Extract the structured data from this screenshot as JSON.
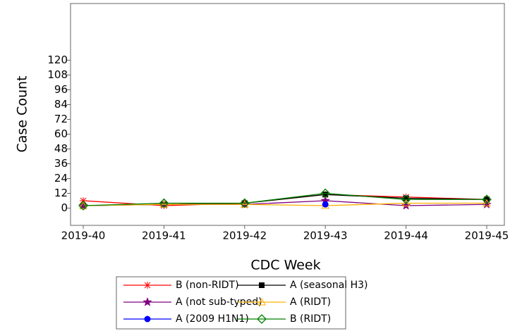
{
  "chart_data": {
    "type": "line",
    "x_label": "CDC Week",
    "y_label": "Case Count",
    "categories": [
      "2019-40",
      "2019-41",
      "2019-42",
      "2019-43",
      "2019-44",
      "2019-45"
    ],
    "ylim": [
      -14,
      166
    ],
    "yticks": [
      0,
      12,
      24,
      36,
      48,
      60,
      72,
      84,
      96,
      108,
      120
    ],
    "series": [
      {
        "name": "B (non-RIDT)",
        "color": "#ff0000",
        "marker": "asterisk",
        "values": [
          6,
          2,
          4,
          11,
          9,
          7
        ]
      },
      {
        "name": "A (seasonal H3)",
        "color": "#000000",
        "marker": "square",
        "values": [
          2,
          3,
          4,
          11,
          8,
          7
        ]
      },
      {
        "name": "A (not sub-typed)",
        "color": "#800080",
        "marker": "star",
        "values": [
          2,
          3,
          3,
          6,
          2,
          3
        ]
      },
      {
        "name": "A (RIDT)",
        "color": "#ffb000",
        "marker": "triangle",
        "values": [
          2,
          3,
          3,
          2,
          4,
          4
        ]
      },
      {
        "name": "A (2009 H1N1)",
        "color": "#0000ff",
        "marker": "circle",
        "values": [
          null,
          null,
          null,
          3,
          null,
          null
        ]
      },
      {
        "name": "B (RIDT)",
        "color": "#008000",
        "marker": "diamond",
        "values": [
          2,
          4,
          4,
          12,
          7,
          7
        ]
      }
    ]
  }
}
